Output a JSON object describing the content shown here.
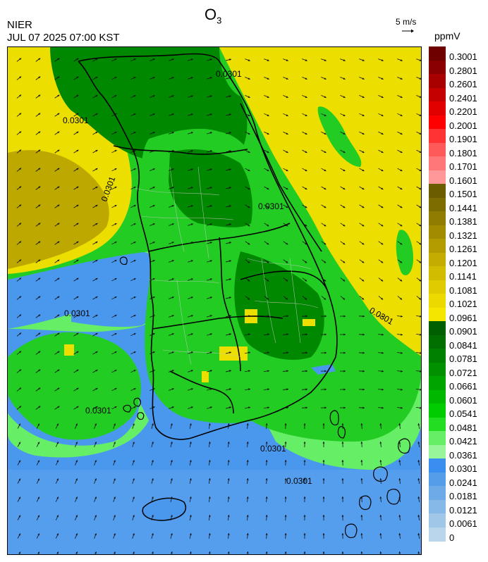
{
  "header": {
    "org": "NIER",
    "timestamp": "JUL 07 2025 07:00 KST",
    "title_main": "O",
    "title_sub": "3",
    "wind_ref": "5 m/s",
    "unit": "ppmV"
  },
  "colorbar": {
    "levels": [
      {
        "label": "0.3001",
        "color": "#6e0000"
      },
      {
        "label": "0.2801",
        "color": "#8a0000"
      },
      {
        "label": "0.2601",
        "color": "#a80000"
      },
      {
        "label": "0.2401",
        "color": "#c40000"
      },
      {
        "label": "0.2201",
        "color": "#e00000"
      },
      {
        "label": "0.2001",
        "color": "#ff0000"
      },
      {
        "label": "0.1901",
        "color": "#ff3333"
      },
      {
        "label": "0.1801",
        "color": "#ff5a5a"
      },
      {
        "label": "0.1701",
        "color": "#ff7777"
      },
      {
        "label": "0.1601",
        "color": "#ff9999"
      },
      {
        "label": "0.1501",
        "color": "#6b5c00"
      },
      {
        "label": "0.1441",
        "color": "#7d6c00"
      },
      {
        "label": "0.1381",
        "color": "#8f7c00"
      },
      {
        "label": "0.1321",
        "color": "#a18c00"
      },
      {
        "label": "0.1261",
        "color": "#b39c00"
      },
      {
        "label": "0.1201",
        "color": "#c4ad00"
      },
      {
        "label": "0.1141",
        "color": "#d2bc00"
      },
      {
        "label": "0.1081",
        "color": "#dfcb00"
      },
      {
        "label": "0.1021",
        "color": "#ecd900"
      },
      {
        "label": "0.0961",
        "color": "#f5e600"
      },
      {
        "label": "0.0901",
        "color": "#005f00"
      },
      {
        "label": "0.0841",
        "color": "#006f00"
      },
      {
        "label": "0.0781",
        "color": "#008000"
      },
      {
        "label": "0.0721",
        "color": "#009000"
      },
      {
        "label": "0.0661",
        "color": "#00a400"
      },
      {
        "label": "0.0601",
        "color": "#00b800"
      },
      {
        "label": "0.0541",
        "color": "#00cc00"
      },
      {
        "label": "0.0481",
        "color": "#22dd22"
      },
      {
        "label": "0.0421",
        "color": "#66ee66"
      },
      {
        "label": "0.0361",
        "color": "#99f599"
      },
      {
        "label": "0.0301",
        "color": "#3a8ef0"
      },
      {
        "label": "0.0241",
        "color": "#559de9"
      },
      {
        "label": "0.0181",
        "color": "#6eaae8"
      },
      {
        "label": "0.0121",
        "color": "#86b8e8"
      },
      {
        "label": "0.0061",
        "color": "#a0c6e8"
      },
      {
        "label": "0",
        "color": "#b9d6ec"
      }
    ]
  },
  "map": {
    "contour_labels": [
      "0.0301",
      "0.0301",
      "0.0301",
      "0.0301",
      "0.0301",
      "0.0301",
      "0.0301",
      "0.0301",
      "0.0301"
    ],
    "colors": {
      "sea_low": "#4a98ee",
      "light_green": "#66ee66",
      "green": "#22cc22",
      "dark_green": "#008800",
      "yellow": "#ecdf00",
      "olive": "#bda800",
      "outline": "#000000",
      "district": "#b8b8b8",
      "arrow": "#111111"
    }
  }
}
